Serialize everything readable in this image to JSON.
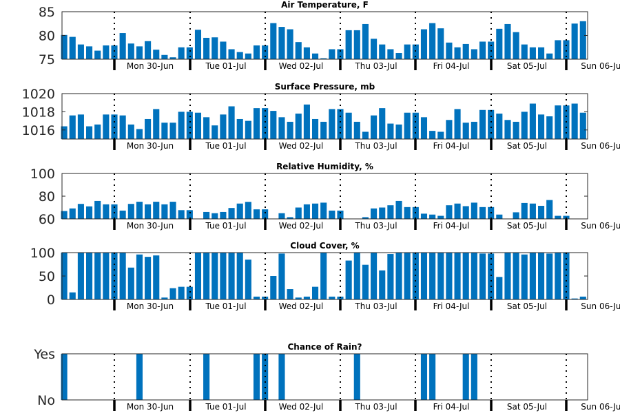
{
  "chart_data": [
    {
      "type": "bar",
      "title": "Air Temperature, F",
      "ylim": [
        75,
        85
      ],
      "yticks": [
        "75",
        "80",
        "85"
      ],
      "color": "#0072BD",
      "day_ticks": [
        "Mon 30-Jun",
        "Tue 01-Jul",
        "Wed 02-Jul",
        "Thu 03-Jul",
        "Fri 04-Jul",
        "Sat 05-Jul",
        "Sun 06-Jul"
      ],
      "values": [
        80.1,
        79.7,
        78.1,
        77.7,
        76.8,
        77.9,
        77.9,
        80.5,
        78.3,
        77.7,
        78.8,
        77.0,
        75.9,
        75.4,
        77.5,
        77.5,
        81.2,
        79.5,
        79.6,
        78.7,
        77.1,
        76.5,
        76.2,
        77.9,
        77.9,
        82.6,
        81.8,
        81.3,
        78.6,
        77.5,
        76.2,
        75.2,
        77.1,
        77.1,
        81.1,
        81.1,
        82.4,
        79.3,
        78.1,
        77.1,
        76.3,
        78.1,
        78.1,
        81.3,
        82.6,
        81.5,
        78.5,
        77.5,
        78.2,
        77.1,
        78.7,
        78.7,
        81.4,
        82.4,
        80.7,
        78.1,
        77.5,
        77.5,
        76.2,
        79.0,
        79.0,
        82.5,
        83.0
      ]
    },
    {
      "type": "bar",
      "title": "Surface Pressure, mb",
      "ylim": [
        1015,
        1020
      ],
      "yticks": [
        "1016",
        "1018",
        "1020"
      ],
      "color": "#0072BD",
      "day_ticks": [
        "Mon 30-Jun",
        "Tue 01-Jul",
        "Wed 02-Jul",
        "Thu 03-Jul",
        "Fri 04-Jul",
        "Sat 05-Jul",
        "Sun 06-Jul"
      ],
      "values": [
        1016.4,
        1017.6,
        1017.7,
        1016.4,
        1016.6,
        1017.7,
        1017.7,
        1017.6,
        1016.6,
        1016.1,
        1017.2,
        1018.3,
        1016.8,
        1016.8,
        1018.0,
        1018.0,
        1017.9,
        1017.4,
        1016.5,
        1017.7,
        1018.6,
        1017.2,
        1017.0,
        1018.4,
        1018.4,
        1018.1,
        1017.4,
        1016.9,
        1017.8,
        1018.8,
        1017.2,
        1016.9,
        1018.3,
        1018.3,
        1017.9,
        1016.9,
        1015.8,
        1017.6,
        1018.4,
        1016.7,
        1016.6,
        1017.9,
        1017.9,
        1017.4,
        1015.9,
        1015.8,
        1017.1,
        1018.3,
        1016.8,
        1016.9,
        1018.2,
        1018.2,
        1017.8,
        1017.1,
        1016.9,
        1018.0,
        1018.9,
        1017.7,
        1017.5,
        1018.7,
        1018.7,
        1018.9,
        1017.9
      ]
    },
    {
      "type": "bar",
      "title": "Relative Humidity, %",
      "ylim": [
        60,
        100
      ],
      "yticks": [
        "60",
        "80",
        "100"
      ],
      "color": "#0072BD",
      "day_ticks": [
        "Mon 30-Jun",
        "Tue 01-Jul",
        "Wed 02-Jul",
        "Thu 03-Jul",
        "Fri 04-Jul",
        "Sat 05-Jul",
        "Sun 06-Jul"
      ],
      "values": [
        66.9,
        69.2,
        73.2,
        71.0,
        75.8,
        72.8,
        72.8,
        67.3,
        73.2,
        75.1,
        72.8,
        75.1,
        72.8,
        75.1,
        67.7,
        67.7,
        59.0,
        66.1,
        65.0,
        66.1,
        69.6,
        73.5,
        75.0,
        68.4,
        68.4,
        58.2,
        65.0,
        61.5,
        70.0,
        72.8,
        73.5,
        74.3,
        67.3,
        67.3,
        57.8,
        58.2,
        61.5,
        69.2,
        70.0,
        72.0,
        75.8,
        70.4,
        70.4,
        64.6,
        63.8,
        62.7,
        72.0,
        73.5,
        71.2,
        74.3,
        70.4,
        70.4,
        63.8,
        58.5,
        65.8,
        74.0,
        73.5,
        71.5,
        76.6,
        62.7,
        62.7,
        58.5,
        57.6
      ]
    },
    {
      "type": "bar",
      "title": "Cloud Cover, %",
      "ylim": [
        0,
        100
      ],
      "yticks": [
        "0",
        "50",
        "100"
      ],
      "color": "#0072BD",
      "day_ticks": [
        "Mon 30-Jun",
        "Tue 01-Jul",
        "Wed 02-Jul",
        "Thu 03-Jul",
        "Fri 04-Jul",
        "Sat 05-Jul",
        "Sun 06-Jul"
      ],
      "values": [
        100,
        15,
        100,
        100,
        100,
        100,
        100,
        100,
        68,
        96,
        91,
        94,
        4,
        24,
        27,
        27,
        100,
        100,
        100,
        100,
        100,
        100,
        85,
        6,
        6,
        50,
        98,
        22,
        4,
        6,
        27,
        100,
        6,
        6,
        83,
        100,
        74,
        100,
        62,
        97,
        100,
        100,
        100,
        100,
        100,
        100,
        100,
        100,
        100,
        100,
        98,
        98,
        48,
        100,
        100,
        96,
        100,
        100,
        98,
        100,
        100,
        2,
        6
      ]
    },
    {
      "type": "bar",
      "title": "Chance of Rain?",
      "ylim": [
        0,
        1
      ],
      "yticks": [
        "No",
        "Yes"
      ],
      "color": "#0072BD",
      "day_ticks": [
        "Mon 30-Jun",
        "Tue 01-Jul",
        "Wed 02-Jul",
        "Thu 03-Jul",
        "Fri 04-Jul",
        "Sat 05-Jul",
        "Sun 06-Jul"
      ],
      "values": [
        1,
        0,
        0,
        0,
        0,
        0,
        0,
        0,
        0,
        1,
        0,
        0,
        0,
        0,
        0,
        0,
        0,
        1,
        0,
        0,
        0,
        0,
        0,
        1,
        1,
        0,
        1,
        0,
        0,
        0,
        0,
        0,
        0,
        0,
        0,
        1,
        0,
        0,
        0,
        0,
        0,
        0,
        0,
        1,
        1,
        0,
        0,
        0,
        1,
        1,
        0,
        0,
        0,
        0,
        0,
        0,
        0,
        0,
        0,
        0,
        0,
        0,
        0
      ]
    }
  ]
}
